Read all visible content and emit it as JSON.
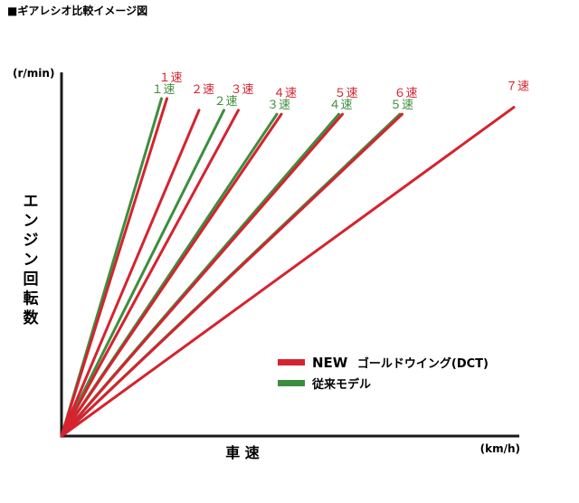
{
  "page": {
    "title": "■ギアレシオ比較イメージ図"
  },
  "chart_data": {
    "type": "line",
    "title": "■ギアレシオ比較イメージ図",
    "xlabel": "車 速",
    "ylabel": "エンジン回転数",
    "x_unit": "(km/h)",
    "y_unit": "(r/min)",
    "legend": "bottom-right",
    "grid": false,
    "colors": {
      "new": "#d5232f",
      "old": "#3e8d3f"
    },
    "xlim": [
      0,
      100
    ],
    "ylim": [
      0,
      100
    ],
    "series": [
      {
        "name": "NEW ゴールドウイング(DCT)",
        "legend_main": "NEW",
        "legend_sub": "ゴールドウイング(DCT)",
        "color": "#d5232f",
        "gears": [
          {
            "label": "１速",
            "end": [
              23.3,
              92.8
            ]
          },
          {
            "label": "２速",
            "end": [
              30.4,
              89.6
            ]
          },
          {
            "label": "３速",
            "end": [
              39.1,
              89.6
            ]
          },
          {
            "label": "４速",
            "end": [
              48.6,
              88.5
            ]
          },
          {
            "label": "５速",
            "end": [
              62.1,
              88.5
            ]
          },
          {
            "label": "６速",
            "end": [
              75.3,
              88.5
            ]
          },
          {
            "label": "７速",
            "end": [
              100.0,
              90.4
            ]
          }
        ]
      },
      {
        "name": "従来モデル",
        "color": "#3e8d3f",
        "gears": [
          {
            "label": "１速",
            "end": [
              22.1,
              92.8
            ]
          },
          {
            "label": "２速",
            "end": [
              35.9,
              89.6
            ]
          },
          {
            "label": "３速",
            "end": [
              47.6,
              88.5
            ]
          },
          {
            "label": "４速",
            "end": [
              61.3,
              88.5
            ]
          },
          {
            "label": "５速",
            "end": [
              74.8,
              88.5
            ]
          }
        ]
      }
    ]
  }
}
